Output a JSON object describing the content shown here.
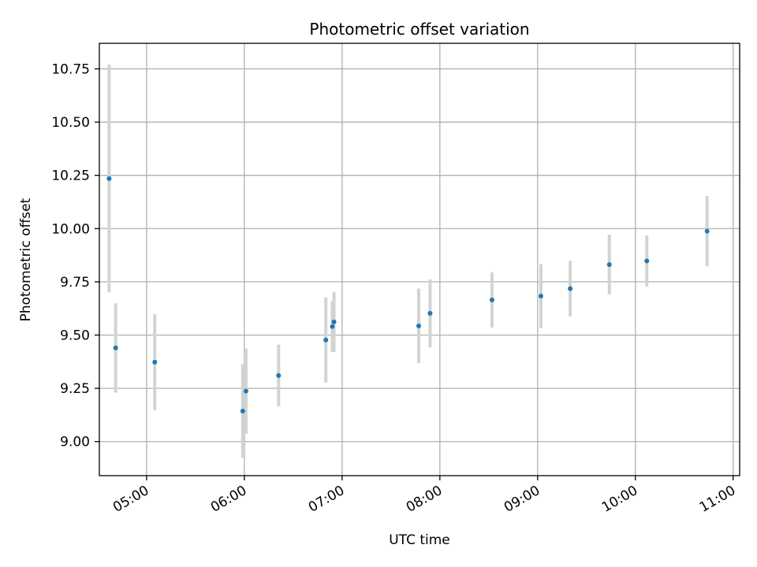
{
  "chart_data": {
    "type": "scatter",
    "title": "Photometric offset variation",
    "xlabel": "UTC time",
    "ylabel": "Photometric offset",
    "xlim": [
      "04:31",
      "11:04"
    ],
    "ylim": [
      8.84,
      10.87
    ],
    "grid": true,
    "x_ticks": [
      "05:00",
      "06:00",
      "07:00",
      "08:00",
      "09:00",
      "10:00",
      "11:00"
    ],
    "y_ticks": [
      "9.00",
      "9.25",
      "9.50",
      "9.75",
      "10.00",
      "10.25",
      "10.50",
      "10.75"
    ],
    "series": [
      {
        "marker_color": "#1f77b4",
        "errorbar_color": "#d3d3d3",
        "points": [
          {
            "x": "04:37",
            "y": 10.235,
            "err": 0.535
          },
          {
            "x": "04:41",
            "y": 9.44,
            "err": 0.21
          },
          {
            "x": "05:05",
            "y": 9.373,
            "err": 0.225
          },
          {
            "x": "05:59",
            "y": 9.143,
            "err": 0.22
          },
          {
            "x": "06:01",
            "y": 9.237,
            "err": 0.2
          },
          {
            "x": "06:21",
            "y": 9.31,
            "err": 0.145
          },
          {
            "x": "06:50",
            "y": 9.477,
            "err": 0.2
          },
          {
            "x": "06:54",
            "y": 9.54,
            "err": 0.12
          },
          {
            "x": "06:55",
            "y": 9.562,
            "err": 0.14
          },
          {
            "x": "07:47",
            "y": 9.543,
            "err": 0.175
          },
          {
            "x": "07:54",
            "y": 9.602,
            "err": 0.16
          },
          {
            "x": "08:32",
            "y": 9.665,
            "err": 0.13
          },
          {
            "x": "09:02",
            "y": 9.683,
            "err": 0.15
          },
          {
            "x": "09:20",
            "y": 9.718,
            "err": 0.13
          },
          {
            "x": "09:44",
            "y": 9.831,
            "err": 0.14
          },
          {
            "x": "10:07",
            "y": 9.848,
            "err": 0.12
          },
          {
            "x": "10:44",
            "y": 9.988,
            "err": 0.165
          }
        ]
      }
    ]
  }
}
